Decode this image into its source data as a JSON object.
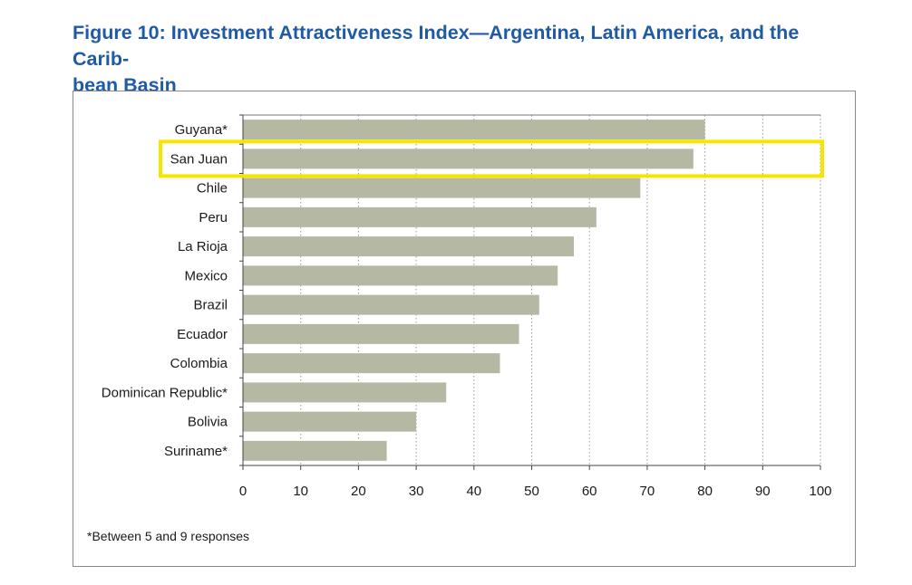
{
  "figure": {
    "title": "Figure 10: Investment Attractiveness Index—Argentina, Latin America, and the Carib-bean Basin",
    "title_line1": "Figure 10: Investment Attractiveness Index—Argentina, Latin America, and the Carib-",
    "title_line2": "bean Basin",
    "footnote": "*Between 5 and 9 responses"
  },
  "chart_data": {
    "type": "bar",
    "orientation": "horizontal",
    "categories": [
      "Guyana*",
      "San Juan",
      "Chile",
      "Peru",
      "La Rioja",
      "Mexico",
      "Brazil",
      "Ecuador",
      "Colombia",
      "Dominican Republic*",
      "Bolivia",
      "Suriname*"
    ],
    "values": [
      80,
      78,
      68.8,
      61.2,
      57.3,
      54.5,
      51.3,
      47.8,
      44.5,
      35.2,
      30,
      24.9
    ],
    "xlim": [
      0,
      100
    ],
    "xticks": [
      0,
      10,
      20,
      30,
      40,
      50,
      60,
      70,
      80,
      90,
      100
    ],
    "highlighted_category": "San Juan",
    "grid": "vertical dotted",
    "colors": {
      "bar": "#b5b8a2",
      "highlight": "#f5e600",
      "grid": "#9a9a9a"
    }
  }
}
